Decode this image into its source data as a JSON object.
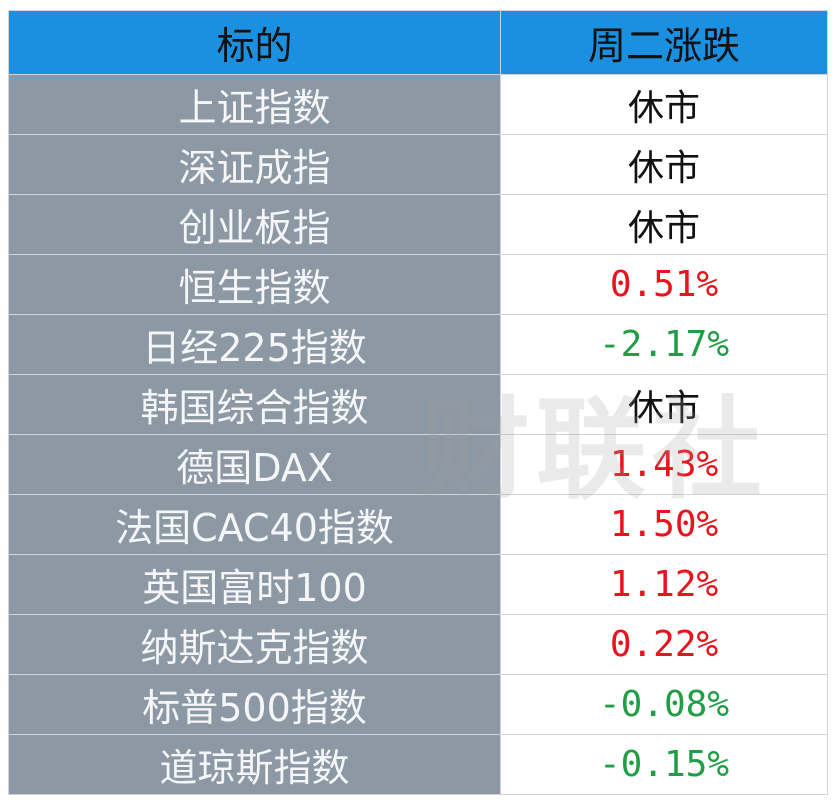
{
  "table": {
    "header": [
      "标的",
      "周二涨跌"
    ],
    "rows": [
      [
        "上证指数",
        "休市"
      ],
      [
        "深证成指",
        "休市"
      ],
      [
        "创业板指",
        "休市"
      ],
      [
        "恒生指数",
        "0.51%"
      ],
      [
        "日经225指数",
        "-2.17%"
      ],
      [
        "韩国综合指数",
        "休市"
      ],
      [
        "德国DAX",
        "1.43%"
      ],
      [
        "法国CAC40指数",
        "1.50%"
      ],
      [
        "英国富时100",
        "1.12%"
      ],
      [
        "纳斯达克指数",
        "0.22%"
      ],
      [
        "标普500指数",
        "-0.08%"
      ],
      [
        "道琼斯指数",
        "-0.15%"
      ]
    ],
    "row_colors": [
      "#111111",
      "#111111",
      "#111111",
      "#e8141b",
      "#1f9e45",
      "#111111",
      "#e8141b",
      "#e8141b",
      "#e8141b",
      "#e8141b",
      "#1f9e45",
      "#1f9e45"
    ]
  },
  "watermark": "财联社"
}
